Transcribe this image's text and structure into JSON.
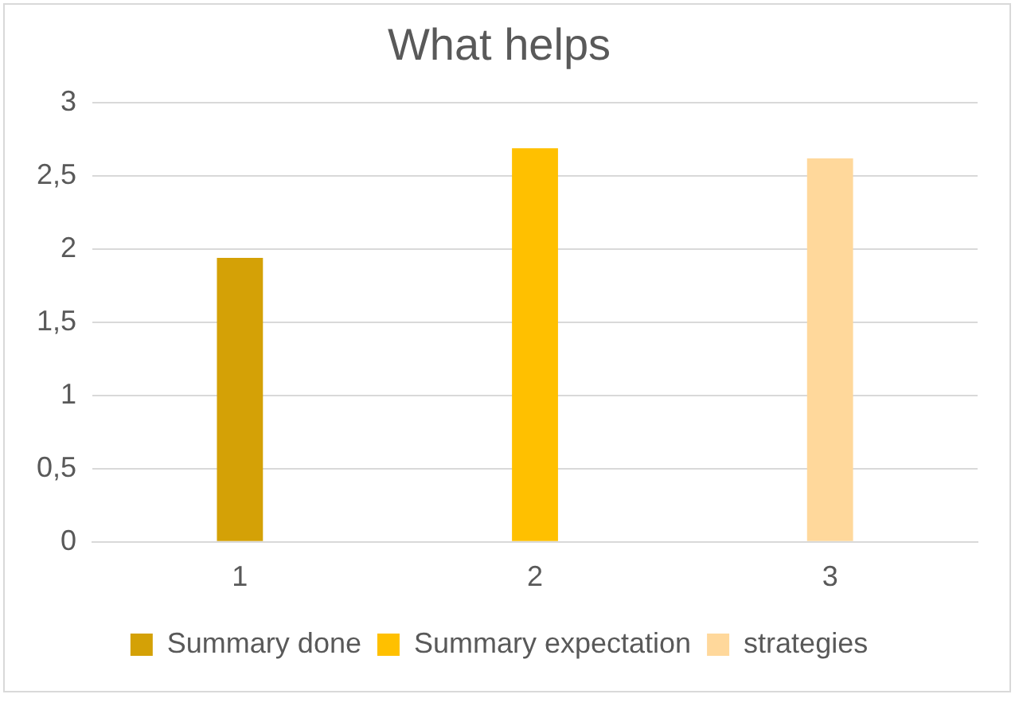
{
  "chart_data": {
    "type": "bar",
    "title": "What helps",
    "categories": [
      "1",
      "2",
      "3"
    ],
    "series": [
      {
        "name": "Summary done",
        "color": "#d4a106",
        "values": [
          1.94,
          null,
          null
        ]
      },
      {
        "name": "Summary expectation",
        "color": "#ffc000",
        "values": [
          null,
          2.69,
          null
        ]
      },
      {
        "name": "strategies",
        "color": "#ffd89b",
        "values": [
          null,
          null,
          2.62
        ]
      }
    ],
    "ylim": [
      0,
      3
    ],
    "yticks": [
      0,
      {
        "value": 0.5,
        "label": "0,5"
      },
      1,
      {
        "value": 1.5,
        "label": "1,5"
      },
      2,
      {
        "value": 2.5,
        "label": "2,5"
      },
      3
    ],
    "grid": "y",
    "legend": "bottom"
  }
}
